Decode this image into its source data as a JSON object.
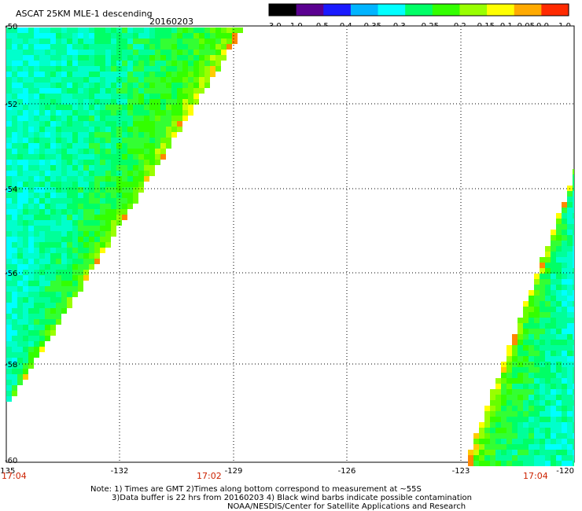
{
  "header": {
    "title": "ASCAT 25KM MLE-1 descending",
    "date": "20160203"
  },
  "colorbar": {
    "labels": [
      "-3.0",
      "-1.0",
      "-0.5",
      "-0.4",
      "-0.35",
      "-0.3",
      "-0.25",
      "-0.2",
      "-0.15",
      "-0.1",
      "-0.05",
      "0.0",
      "1.0"
    ],
    "colors": [
      "#000000",
      "#5a0090",
      "#1a1aff",
      "#00b4ff",
      "#00ffff",
      "#00ff66",
      "#33ff00",
      "#99ff00",
      "#ffff00",
      "#ffaa00",
      "#ff2a00"
    ]
  },
  "map": {
    "lon_range": [
      -135,
      -120
    ],
    "lat_range": [
      -60,
      -50
    ],
    "lon_ticks": [
      "-135",
      "-132",
      "-129",
      "-126",
      "-123",
      "-120"
    ],
    "lat_ticks": [
      "-50",
      "-52",
      "-54",
      "-56",
      "-58",
      "-60"
    ],
    "pass_times": [
      "17:04",
      "17:02",
      "17:04"
    ]
  },
  "footer": {
    "line1": "Note: 1) Times are GMT 2)Times along bottom correspond to measurement at ~55S",
    "line2": "3)Data buffer is 22 hrs from 20160203 4) Black wind barbs indicate possible contamination",
    "line3": "NOAA/NESDIS/Center for Satellite Applications and Research"
  }
}
